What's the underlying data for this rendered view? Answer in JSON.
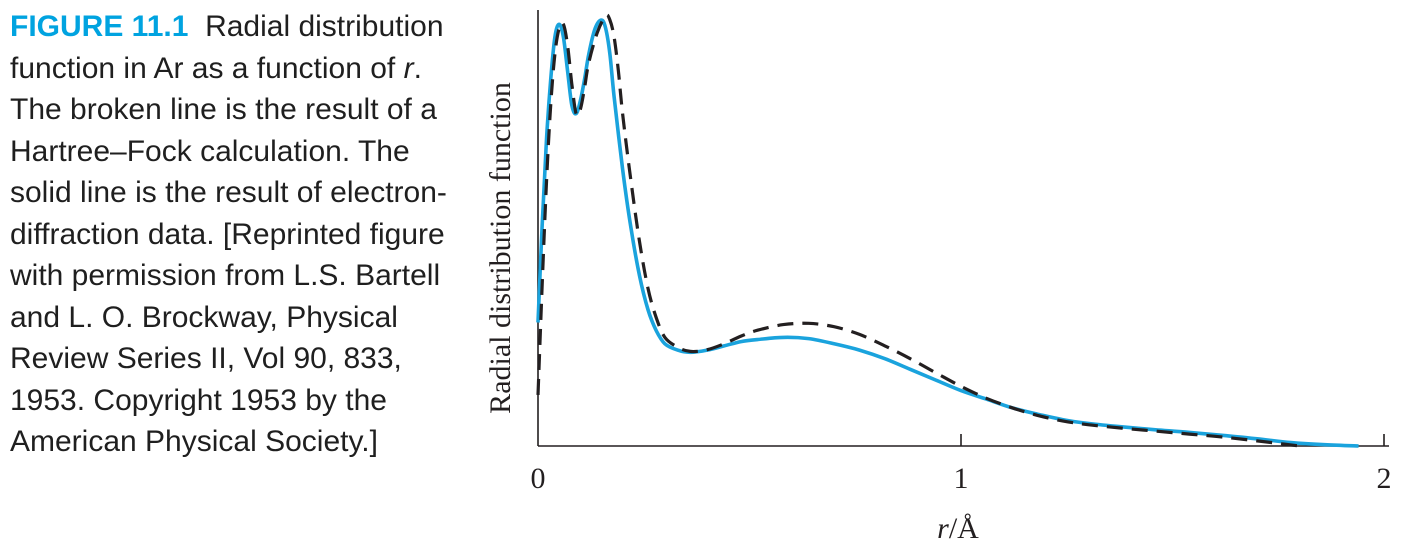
{
  "caption": {
    "label": "FIGURE 11.1",
    "text_1": "Radial distribution function in Ar as a function of ",
    "var_r": "r",
    "text_2": ". The broken line is the result of a Hartree–Fock calculation. The solid line is the result of electron-diffraction data. [Reprinted figure with permission from L.S. Bartell and L. O. Brockway, Physical Review Series II, Vol 90, 833, 1953. Copyright 1953 by the American Physical Society.]"
  },
  "colors": {
    "label": "#00a3e0",
    "solid_series": "#1aa3dd",
    "dashed_series": "#231f20",
    "axis": "#231f20"
  },
  "chart_data": {
    "type": "line",
    "xlabel_var": "r",
    "xlabel_unit": "/Å",
    "ylabel": "Radial distribution function",
    "xlim": [
      0,
      2
    ],
    "ylim": [
      0,
      1
    ],
    "xticks": [
      "0",
      "1",
      "2"
    ],
    "yticks": [],
    "grid": false,
    "series": [
      {
        "style": "solid",
        "x": [
          0.0,
          0.01,
          0.02,
          0.03,
          0.04,
          0.05,
          0.06,
          0.07,
          0.08,
          0.09,
          0.1,
          0.11,
          0.12,
          0.135,
          0.15,
          0.16,
          0.17,
          0.18,
          0.2,
          0.22,
          0.24,
          0.26,
          0.28,
          0.3,
          0.33,
          0.36,
          0.4,
          0.44,
          0.48,
          0.52,
          0.58,
          0.64,
          0.7,
          0.76,
          0.82,
          0.88,
          0.94,
          1.0,
          1.06,
          1.12,
          1.18,
          1.24,
          1.3,
          1.38,
          1.46,
          1.54,
          1.62,
          1.7,
          1.78,
          1.86,
          1.94
        ],
        "y": [
          0.29,
          0.52,
          0.72,
          0.86,
          0.96,
          0.99,
          0.96,
          0.88,
          0.8,
          0.78,
          0.81,
          0.86,
          0.92,
          0.98,
          1.0,
          0.98,
          0.92,
          0.82,
          0.65,
          0.51,
          0.4,
          0.32,
          0.27,
          0.24,
          0.225,
          0.22,
          0.225,
          0.235,
          0.245,
          0.25,
          0.255,
          0.252,
          0.24,
          0.225,
          0.205,
          0.18,
          0.155,
          0.13,
          0.11,
          0.09,
          0.075,
          0.062,
          0.053,
          0.045,
          0.038,
          0.032,
          0.025,
          0.017,
          0.008,
          0.003,
          0.0
        ]
      },
      {
        "style": "dashed",
        "x": [
          0.0,
          0.01,
          0.02,
          0.03,
          0.04,
          0.05,
          0.06,
          0.07,
          0.08,
          0.09,
          0.1,
          0.11,
          0.12,
          0.14,
          0.16,
          0.17,
          0.18,
          0.19,
          0.2,
          0.22,
          0.24,
          0.26,
          0.28,
          0.3,
          0.33,
          0.36,
          0.4,
          0.44,
          0.48,
          0.52,
          0.58,
          0.64,
          0.7,
          0.76,
          0.82,
          0.88,
          0.94,
          1.0,
          1.06,
          1.12,
          1.18,
          1.24,
          1.3,
          1.38,
          1.46,
          1.54,
          1.62,
          1.7,
          1.76,
          1.8
        ],
        "y": [
          0.12,
          0.38,
          0.62,
          0.8,
          0.92,
          0.98,
          0.99,
          0.94,
          0.85,
          0.78,
          0.79,
          0.84,
          0.9,
          0.97,
          1.01,
          1.0,
          0.96,
          0.88,
          0.78,
          0.62,
          0.48,
          0.37,
          0.3,
          0.255,
          0.232,
          0.222,
          0.226,
          0.24,
          0.258,
          0.272,
          0.285,
          0.288,
          0.28,
          0.262,
          0.235,
          0.205,
          0.172,
          0.14,
          0.112,
          0.09,
          0.072,
          0.059,
          0.05,
          0.042,
          0.035,
          0.028,
          0.021,
          0.012,
          0.005,
          0.0
        ]
      }
    ]
  }
}
